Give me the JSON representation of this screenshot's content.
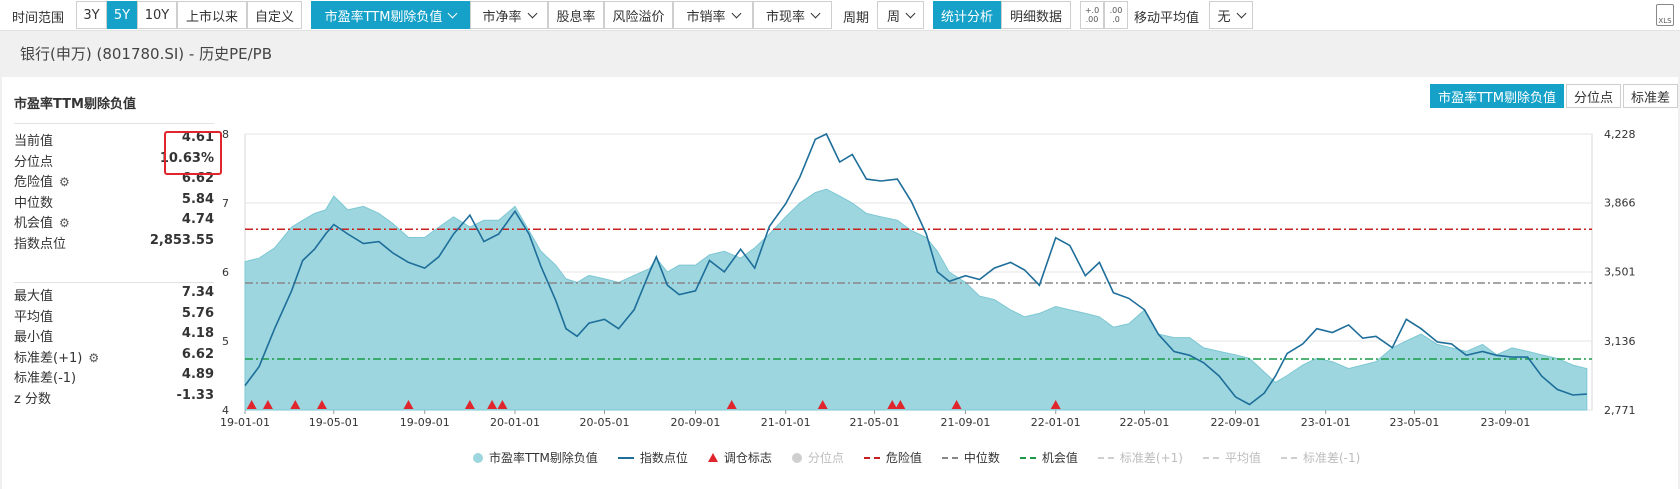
{
  "toolbar": {
    "range_label": "时间范围",
    "ranges": [
      "3Y",
      "5Y",
      "10Y",
      "上市以来",
      "自定义"
    ],
    "active_range": "5Y",
    "metric_pe": "市盈率TTM剔除负值",
    "metric_pb": "市净率",
    "metric_dy": "股息率",
    "metric_risk": "风险溢价",
    "metric_ps": "市销率",
    "metric_pcf": "市现率",
    "period_label": "周期",
    "period_value": "周",
    "view_stats": "统计分析",
    "view_detail": "明细数据",
    "decimal_up": "+.0 .00",
    "decimal_down": ".00 .0",
    "ma_label": "移动平均值",
    "ma_value": "无",
    "export_icon_text": "XLS"
  },
  "subtitle": "银行(申万) (801780.SI) - 历史PE/PB",
  "panel": {
    "title": "市盈率TTM剔除负值",
    "tabs": [
      "市盈率TTM剔除负值",
      "分位点",
      "标准差"
    ],
    "stats_top": [
      {
        "label": "当前值",
        "value": "4.61",
        "gear": false
      },
      {
        "label": "分位点",
        "value": "10.63%",
        "gear": false
      },
      {
        "label": "危险值",
        "value": "6.62",
        "gear": true
      },
      {
        "label": "中位数",
        "value": "5.84",
        "gear": false
      },
      {
        "label": "机会值",
        "value": "4.74",
        "gear": true
      },
      {
        "label": "指数点位",
        "value": "2,853.55",
        "gear": false
      }
    ],
    "stats_bottom": [
      {
        "label": "最大值",
        "value": "7.34",
        "gear": false
      },
      {
        "label": "平均值",
        "value": "5.76",
        "gear": false
      },
      {
        "label": "最小值",
        "value": "4.18",
        "gear": false
      },
      {
        "label": "标准差(+1)",
        "value": "6.62",
        "gear": true
      },
      {
        "label": "标准差(-1)",
        "value": "4.89",
        "gear": false
      },
      {
        "label": "z 分数",
        "value": "-1.33",
        "gear": false
      }
    ]
  },
  "colors": {
    "accent": "#15a1c8",
    "area": "#9dd6df",
    "line": "#1e6e9a",
    "danger": "#c8201f",
    "median": "#888888",
    "chance": "#1c9a4a",
    "marker": "#e0262c"
  },
  "chart_data": {
    "type": "area",
    "xticks": [
      "19-01-01",
      "19-05-01",
      "19-09-01",
      "20-01-01",
      "20-05-01",
      "20-09-01",
      "21-01-01",
      "21-05-01",
      "21-09-01",
      "22-01-01",
      "22-05-01",
      "22-09-01",
      "23-01-01",
      "23-05-01",
      "23-09-01"
    ],
    "ylim_left": [
      4,
      8
    ],
    "yticks_left": [
      "4",
      "5",
      "6",
      "7",
      "8"
    ],
    "ylim_right": [
      2771,
      4228
    ],
    "yticks_right": [
      "2,771",
      "3,136",
      "3,501",
      "3,866",
      "4,228"
    ],
    "grid": true,
    "reference_lines": {
      "danger": 6.62,
      "median": 5.84,
      "chance": 4.74
    },
    "series": [
      {
        "name": "市盈率TTM剔除负值",
        "axis": "left",
        "x": [
          "2019-01-01",
          "2019-01-20",
          "2019-02-10",
          "2019-03-05",
          "2019-03-20",
          "2019-04-05",
          "2019-04-20",
          "2019-05-01",
          "2019-05-20",
          "2019-06-10",
          "2019-07-01",
          "2019-07-20",
          "2019-08-10",
          "2019-09-01",
          "2019-09-20",
          "2019-10-10",
          "2019-11-01",
          "2019-11-20",
          "2019-12-10",
          "2020-01-01",
          "2020-01-20",
          "2020-02-05",
          "2020-02-25",
          "2020-03-10",
          "2020-03-25",
          "2020-04-10",
          "2020-05-01",
          "2020-05-20",
          "2020-06-10",
          "2020-07-01",
          "2020-07-10",
          "2020-07-25",
          "2020-08-10",
          "2020-09-01",
          "2020-09-20",
          "2020-10-10",
          "2020-11-01",
          "2020-11-20",
          "2020-12-10",
          "2021-01-01",
          "2021-01-20",
          "2021-02-10",
          "2021-02-25",
          "2021-03-15",
          "2021-04-01",
          "2021-04-20",
          "2021-05-10",
          "2021-06-01",
          "2021-06-20",
          "2021-07-10",
          "2021-07-25",
          "2021-08-10",
          "2021-09-01",
          "2021-09-20",
          "2021-10-10",
          "2021-11-01",
          "2021-11-20",
          "2021-12-10",
          "2022-01-01",
          "2022-01-20",
          "2022-02-10",
          "2022-03-01",
          "2022-03-20",
          "2022-04-10",
          "2022-05-01",
          "2022-05-20",
          "2022-06-10",
          "2022-07-01",
          "2022-07-20",
          "2022-08-10",
          "2022-09-01",
          "2022-09-20",
          "2022-10-10",
          "2022-10-25",
          "2022-11-10",
          "2022-12-01",
          "2022-12-20",
          "2023-01-10",
          "2023-02-01",
          "2023-02-20",
          "2023-03-10",
          "2023-04-01",
          "2023-04-20",
          "2023-05-10",
          "2023-06-01",
          "2023-06-20",
          "2023-07-10",
          "2023-08-01",
          "2023-08-20",
          "2023-09-10",
          "2023-10-01",
          "2023-10-20",
          "2023-11-10",
          "2023-12-01",
          "2023-12-20"
        ],
        "values": [
          6.15,
          6.2,
          6.35,
          6.65,
          6.75,
          6.85,
          6.9,
          7.1,
          6.9,
          6.95,
          6.85,
          6.7,
          6.5,
          6.5,
          6.65,
          6.8,
          6.65,
          6.75,
          6.75,
          6.95,
          6.6,
          6.3,
          6.1,
          5.9,
          5.85,
          5.95,
          5.9,
          5.85,
          5.95,
          6.05,
          6.2,
          6.0,
          6.1,
          6.1,
          6.25,
          6.3,
          6.2,
          6.35,
          6.55,
          6.8,
          7.0,
          7.15,
          7.2,
          7.1,
          7.0,
          6.85,
          6.8,
          6.75,
          6.6,
          6.5,
          6.3,
          6.0,
          5.85,
          5.65,
          5.6,
          5.45,
          5.35,
          5.4,
          5.5,
          5.45,
          5.4,
          5.35,
          5.2,
          5.25,
          5.45,
          5.1,
          5.05,
          5.05,
          4.9,
          4.85,
          4.8,
          4.75,
          4.55,
          4.4,
          4.5,
          4.65,
          4.75,
          4.7,
          4.6,
          4.65,
          4.7,
          4.9,
          5.0,
          5.1,
          4.95,
          4.9,
          4.85,
          4.95,
          4.8,
          4.9,
          4.85,
          4.8,
          4.75,
          4.65,
          4.6
        ]
      },
      {
        "name": "指数点位",
        "axis": "right",
        "x": [
          "2019-01-01",
          "2019-01-20",
          "2019-02-10",
          "2019-03-05",
          "2019-03-20",
          "2019-04-05",
          "2019-04-20",
          "2019-05-01",
          "2019-05-20",
          "2019-06-10",
          "2019-07-01",
          "2019-07-20",
          "2019-08-10",
          "2019-09-01",
          "2019-09-20",
          "2019-10-10",
          "2019-11-01",
          "2019-11-20",
          "2019-12-10",
          "2020-01-01",
          "2020-01-20",
          "2020-02-05",
          "2020-02-25",
          "2020-03-10",
          "2020-03-25",
          "2020-04-10",
          "2020-05-01",
          "2020-05-20",
          "2020-06-10",
          "2020-07-01",
          "2020-07-10",
          "2020-07-25",
          "2020-08-10",
          "2020-09-01",
          "2020-09-20",
          "2020-10-10",
          "2020-11-01",
          "2020-11-20",
          "2020-12-10",
          "2021-01-01",
          "2021-01-20",
          "2021-02-10",
          "2021-02-25",
          "2021-03-15",
          "2021-04-01",
          "2021-04-20",
          "2021-05-10",
          "2021-06-01",
          "2021-06-20",
          "2021-07-10",
          "2021-07-25",
          "2021-08-10",
          "2021-09-01",
          "2021-09-20",
          "2021-10-10",
          "2021-11-01",
          "2021-11-20",
          "2021-12-10",
          "2022-01-01",
          "2022-01-20",
          "2022-02-10",
          "2022-03-01",
          "2022-03-20",
          "2022-04-10",
          "2022-05-01",
          "2022-05-20",
          "2022-06-10",
          "2022-07-01",
          "2022-07-20",
          "2022-08-10",
          "2022-09-01",
          "2022-09-20",
          "2022-10-10",
          "2022-10-25",
          "2022-11-10",
          "2022-12-01",
          "2022-12-20",
          "2023-01-10",
          "2023-02-01",
          "2023-02-20",
          "2023-03-10",
          "2023-04-01",
          "2023-04-20",
          "2023-05-10",
          "2023-06-01",
          "2023-06-20",
          "2023-07-10",
          "2023-08-01",
          "2023-08-20",
          "2023-09-10",
          "2023-10-01",
          "2023-10-20",
          "2023-11-10",
          "2023-12-01",
          "2023-12-20"
        ],
        "values": [
          2900,
          3000,
          3200,
          3400,
          3560,
          3620,
          3700,
          3750,
          3700,
          3650,
          3660,
          3600,
          3550,
          3520,
          3580,
          3700,
          3800,
          3660,
          3700,
          3820,
          3700,
          3530,
          3350,
          3200,
          3160,
          3230,
          3250,
          3200,
          3300,
          3500,
          3580,
          3430,
          3380,
          3400,
          3560,
          3500,
          3620,
          3520,
          3740,
          3860,
          4000,
          4200,
          4228,
          4080,
          4120,
          3990,
          3980,
          3990,
          3870,
          3700,
          3500,
          3450,
          3480,
          3460,
          3520,
          3550,
          3510,
          3430,
          3680,
          3640,
          3480,
          3550,
          3390,
          3360,
          3300,
          3170,
          3080,
          3060,
          3020,
          2950,
          2840,
          2800,
          2860,
          2950,
          3070,
          3120,
          3200,
          3180,
          3220,
          3150,
          3160,
          3100,
          3250,
          3200,
          3130,
          3120,
          3060,
          3080,
          3060,
          3050,
          3050,
          2950,
          2880,
          2850,
          2855
        ]
      }
    ],
    "rebalance_markers": [
      "2019-01-10",
      "2019-02-01",
      "2019-03-10",
      "2019-04-15",
      "2019-08-10",
      "2019-11-01",
      "2019-12-01",
      "2019-12-15",
      "2020-10-20",
      "2021-02-20",
      "2021-05-25",
      "2021-06-05",
      "2021-08-20",
      "2022-01-01"
    ],
    "legend": [
      {
        "label": "市盈率TTM剔除负值",
        "kind": "dot-area",
        "on": true
      },
      {
        "label": "指数点位",
        "kind": "line",
        "on": true
      },
      {
        "label": "调仓标志",
        "kind": "triangle",
        "on": true
      },
      {
        "label": "分位点",
        "kind": "dot-grey",
        "on": false
      },
      {
        "label": "危险值",
        "kind": "dash-red",
        "on": true
      },
      {
        "label": "中位数",
        "kind": "dash-grey",
        "on": true
      },
      {
        "label": "机会值",
        "kind": "dash-green",
        "on": true
      },
      {
        "label": "标准差(+1)",
        "kind": "dash-light",
        "on": false
      },
      {
        "label": "平均值",
        "kind": "dash-light",
        "on": false
      },
      {
        "label": "标准差(-1)",
        "kind": "dash-light",
        "on": false
      }
    ]
  }
}
